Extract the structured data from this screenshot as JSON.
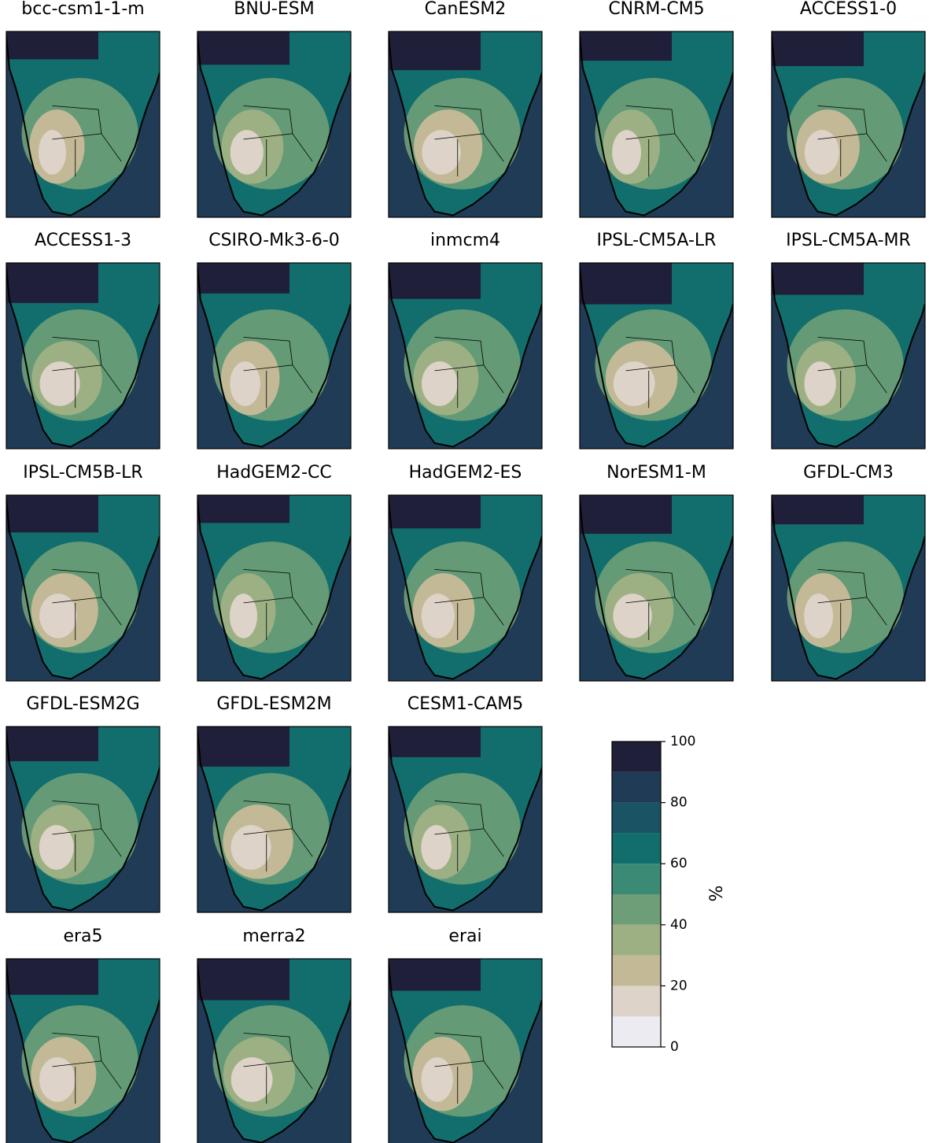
{
  "panels": [
    "bcc-csm1-1-m",
    "BNU-ESM",
    "CanESM2",
    "CNRM-CM5",
    "ACCESS1-0",
    "ACCESS1-3",
    "CSIRO-Mk3-6-0",
    "inmcm4",
    "IPSL-CM5A-LR",
    "IPSL-CM5A-MR",
    "IPSL-CM5B-LR",
    "HadGEM2-CC",
    "HadGEM2-ES",
    "NorESM1-M",
    "GFDL-CM3",
    "GFDL-ESM2G",
    "GFDL-ESM2M",
    "CESM1-CAM5",
    "era5",
    "merra2",
    "erai"
  ],
  "colorbar": {
    "label": "%",
    "levels": [
      0,
      10,
      20,
      30,
      40,
      50,
      60,
      70,
      80,
      90,
      100
    ],
    "colors": [
      "#ecebf2",
      "#ddd3c8",
      "#c4b996",
      "#9db083",
      "#6e9e78",
      "#3b8a76",
      "#116e6c",
      "#1a5464",
      "#203b55",
      "#201f3a"
    ],
    "ticks": [
      0,
      20,
      40,
      60,
      80,
      100
    ]
  }
}
